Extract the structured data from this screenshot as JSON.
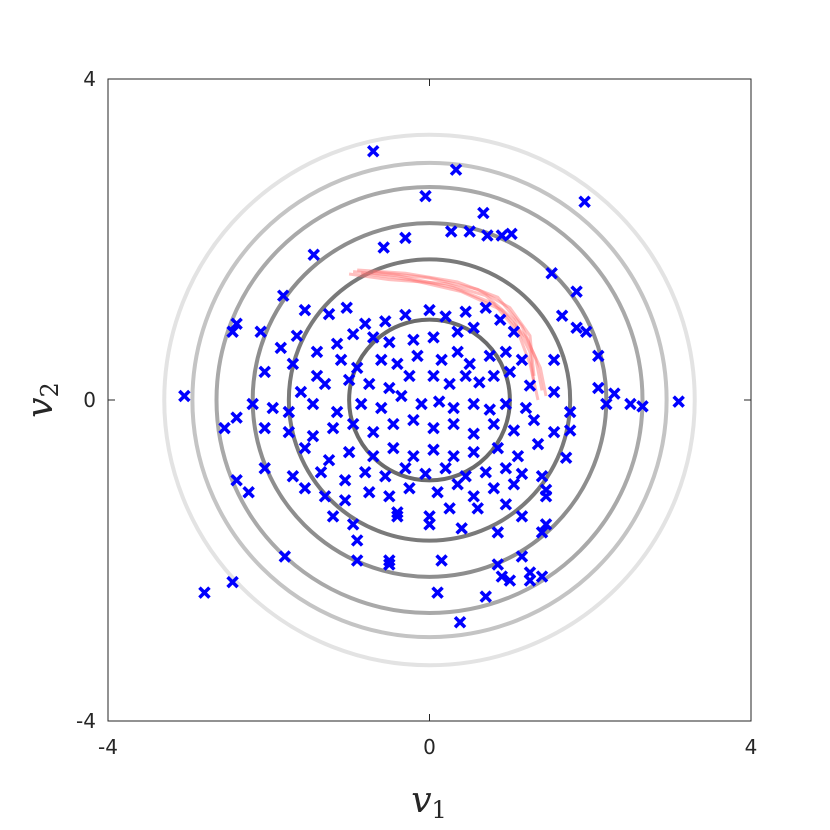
{
  "chart_data": {
    "type": "scatter",
    "title": "",
    "xlabel": {
      "base": "v",
      "sub": "1"
    },
    "ylabel": {
      "base": "v",
      "sub": "2"
    },
    "xlim": [
      -4,
      4
    ],
    "ylim": [
      -4,
      4
    ],
    "xticks": [
      {
        "value": -4,
        "label": "-4"
      },
      {
        "value": 0,
        "label": "0"
      },
      {
        "value": 4,
        "label": "4"
      }
    ],
    "yticks": [
      {
        "value": -4,
        "label": "-4"
      },
      {
        "value": 0,
        "label": "0"
      },
      {
        "value": 4,
        "label": "4"
      }
    ],
    "grid": false,
    "contours": {
      "center": [
        0,
        0
      ],
      "radii": [
        1.0,
        1.75,
        2.2,
        2.65,
        2.95,
        3.3
      ],
      "colors": [
        "#6b6b6b",
        "#7a7a7a",
        "#8e8e8e",
        "#a9a9a9",
        "#c4c4c4",
        "#e3e3e3"
      ]
    },
    "trajectories": {
      "color": "#ff7070",
      "paths": [
        [
          [
            -0.95,
            1.6
          ],
          [
            -0.4,
            1.55
          ],
          [
            0.3,
            1.4
          ],
          [
            0.8,
            1.2
          ],
          [
            1.1,
            0.85
          ],
          [
            1.25,
            0.45
          ],
          [
            1.35,
            0.0
          ]
        ],
        [
          [
            -0.9,
            1.62
          ],
          [
            -0.3,
            1.58
          ],
          [
            0.35,
            1.47
          ],
          [
            0.85,
            1.28
          ],
          [
            1.15,
            0.92
          ],
          [
            1.32,
            0.52
          ],
          [
            1.4,
            0.12
          ]
        ],
        [
          [
            -0.85,
            1.58
          ],
          [
            -0.25,
            1.5
          ],
          [
            0.4,
            1.35
          ],
          [
            0.9,
            1.12
          ],
          [
            1.2,
            0.78
          ],
          [
            1.38,
            0.4
          ],
          [
            1.45,
            0.05
          ]
        ],
        [
          [
            -0.7,
            1.6
          ],
          [
            0.0,
            1.52
          ],
          [
            0.6,
            1.38
          ],
          [
            1.0,
            1.15
          ],
          [
            1.25,
            0.8
          ],
          [
            1.3,
            0.3
          ]
        ],
        [
          [
            -1.0,
            1.57
          ],
          [
            -0.5,
            1.5
          ],
          [
            0.2,
            1.45
          ],
          [
            0.7,
            1.3
          ],
          [
            1.05,
            1.0
          ],
          [
            1.25,
            0.6
          ],
          [
            1.3,
            0.2
          ]
        ]
      ]
    },
    "series": [
      {
        "color": "#0000ff",
        "marker": "x",
        "points": [
          [
            -0.7,
            3.1
          ],
          [
            0.33,
            2.87
          ],
          [
            1.93,
            2.47
          ],
          [
            -0.05,
            2.54
          ],
          [
            0.67,
            2.33
          ],
          [
            -1.44,
            1.81
          ],
          [
            -0.57,
            1.9
          ],
          [
            -0.3,
            2.02
          ],
          [
            0.27,
            2.1
          ],
          [
            0.5,
            2.1
          ],
          [
            0.72,
            2.05
          ],
          [
            0.9,
            2.05
          ],
          [
            1.02,
            2.07
          ],
          [
            1.52,
            1.58
          ],
          [
            1.83,
            1.35
          ],
          [
            -1.82,
            1.3
          ],
          [
            -1.55,
            1.12
          ],
          [
            -1.25,
            1.07
          ],
          [
            -1.03,
            1.15
          ],
          [
            -0.8,
            0.95
          ],
          [
            -0.55,
            0.98
          ],
          [
            -0.3,
            1.06
          ],
          [
            0.0,
            1.12
          ],
          [
            0.2,
            1.04
          ],
          [
            0.45,
            1.1
          ],
          [
            0.7,
            1.15
          ],
          [
            0.88,
            1.0
          ],
          [
            1.05,
            0.85
          ],
          [
            1.65,
            1.05
          ],
          [
            1.83,
            0.9
          ],
          [
            1.95,
            0.85
          ],
          [
            -2.4,
            0.95
          ],
          [
            -2.45,
            0.85
          ],
          [
            -2.1,
            0.85
          ],
          [
            -1.85,
            0.65
          ],
          [
            -1.65,
            0.8
          ],
          [
            -1.4,
            0.6
          ],
          [
            -1.15,
            0.7
          ],
          [
            -0.95,
            0.82
          ],
          [
            -0.7,
            0.78
          ],
          [
            -0.5,
            0.72
          ],
          [
            -0.2,
            0.75
          ],
          [
            0.05,
            0.78
          ],
          [
            0.35,
            0.85
          ],
          [
            0.55,
            0.9
          ],
          [
            -1.7,
            0.45
          ],
          [
            -1.4,
            0.3
          ],
          [
            -1.1,
            0.5
          ],
          [
            -0.9,
            0.4
          ],
          [
            -0.6,
            0.5
          ],
          [
            -0.4,
            0.45
          ],
          [
            -0.15,
            0.55
          ],
          [
            0.15,
            0.5
          ],
          [
            0.35,
            0.6
          ],
          [
            0.5,
            0.45
          ],
          [
            0.75,
            0.55
          ],
          [
            0.95,
            0.6
          ],
          [
            1.15,
            0.5
          ],
          [
            1.55,
            0.5
          ],
          [
            2.1,
            0.55
          ],
          [
            -2.05,
            0.35
          ],
          [
            -1.6,
            0.1
          ],
          [
            -1.3,
            0.2
          ],
          [
            -1.0,
            0.25
          ],
          [
            -0.75,
            0.2
          ],
          [
            -0.5,
            0.15
          ],
          [
            -0.25,
            0.3
          ],
          [
            0.05,
            0.3
          ],
          [
            0.25,
            0.2
          ],
          [
            0.45,
            0.3
          ],
          [
            0.62,
            0.22
          ],
          [
            0.8,
            0.3
          ],
          [
            1.0,
            0.35
          ],
          [
            1.25,
            0.18
          ],
          [
            1.55,
            0.1
          ],
          [
            2.1,
            0.15
          ],
          [
            2.3,
            0.08
          ],
          [
            -3.05,
            0.05
          ],
          [
            -2.2,
            -0.05
          ],
          [
            -1.95,
            -0.1
          ],
          [
            -1.75,
            -0.15
          ],
          [
            -1.45,
            -0.05
          ],
          [
            -1.15,
            -0.15
          ],
          [
            -0.85,
            -0.05
          ],
          [
            -0.6,
            -0.1
          ],
          [
            -0.35,
            0.05
          ],
          [
            -0.1,
            -0.05
          ],
          [
            0.12,
            -0.02
          ],
          [
            0.3,
            -0.1
          ],
          [
            0.55,
            -0.05
          ],
          [
            0.75,
            -0.12
          ],
          [
            0.95,
            -0.05
          ],
          [
            1.2,
            -0.1
          ],
          [
            1.75,
            -0.15
          ],
          [
            2.2,
            -0.05
          ],
          [
            2.5,
            -0.05
          ],
          [
            2.65,
            -0.08
          ],
          [
            3.1,
            -0.02
          ],
          [
            -2.55,
            -0.35
          ],
          [
            -2.4,
            -0.22
          ],
          [
            -2.05,
            -0.35
          ],
          [
            -1.75,
            -0.4
          ],
          [
            -1.45,
            -0.45
          ],
          [
            -1.2,
            -0.35
          ],
          [
            -0.95,
            -0.3
          ],
          [
            -0.7,
            -0.4
          ],
          [
            -0.45,
            -0.3
          ],
          [
            -0.2,
            -0.25
          ],
          [
            0.05,
            -0.35
          ],
          [
            0.3,
            -0.3
          ],
          [
            0.55,
            -0.42
          ],
          [
            0.8,
            -0.3
          ],
          [
            1.05,
            -0.38
          ],
          [
            1.3,
            -0.25
          ],
          [
            1.55,
            -0.4
          ],
          [
            1.75,
            -0.38
          ],
          [
            -1.55,
            -0.6
          ],
          [
            -1.25,
            -0.75
          ],
          [
            -1.0,
            -0.65
          ],
          [
            -0.7,
            -0.7
          ],
          [
            -0.45,
            -0.6
          ],
          [
            -0.2,
            -0.7
          ],
          [
            0.05,
            -0.62
          ],
          [
            0.3,
            -0.7
          ],
          [
            0.55,
            -0.65
          ],
          [
            0.85,
            -0.6
          ],
          [
            1.1,
            -0.7
          ],
          [
            1.35,
            -0.55
          ],
          [
            1.7,
            -0.72
          ],
          [
            -2.05,
            -0.85
          ],
          [
            -1.7,
            -0.95
          ],
          [
            -1.35,
            -0.9
          ],
          [
            -1.05,
            -1.0
          ],
          [
            -0.8,
            -0.9
          ],
          [
            -0.55,
            -0.95
          ],
          [
            -0.3,
            -0.85
          ],
          [
            -0.05,
            -0.92
          ],
          [
            0.2,
            -0.85
          ],
          [
            0.45,
            -0.95
          ],
          [
            0.7,
            -0.9
          ],
          [
            0.95,
            -0.85
          ],
          [
            1.15,
            -0.92
          ],
          [
            1.4,
            -0.95
          ],
          [
            -2.4,
            -1.0
          ],
          [
            -2.25,
            -1.15
          ],
          [
            -1.55,
            -1.1
          ],
          [
            -1.3,
            -1.2
          ],
          [
            -1.05,
            -1.25
          ],
          [
            -0.75,
            -1.15
          ],
          [
            -0.5,
            -1.2
          ],
          [
            -0.25,
            -1.1
          ],
          [
            0.1,
            -1.15
          ],
          [
            0.35,
            -1.05
          ],
          [
            0.55,
            -1.2
          ],
          [
            0.8,
            -1.1
          ],
          [
            1.05,
            -1.05
          ],
          [
            1.45,
            -1.12
          ],
          [
            1.45,
            -1.2
          ],
          [
            -1.2,
            -1.45
          ],
          [
            -0.95,
            -1.55
          ],
          [
            -0.4,
            -1.45
          ],
          [
            0.0,
            -1.45
          ],
          [
            0.25,
            -1.35
          ],
          [
            0.6,
            -1.35
          ],
          [
            0.95,
            -1.3
          ],
          [
            1.15,
            -1.45
          ],
          [
            1.45,
            -1.55
          ],
          [
            -0.9,
            -1.75
          ],
          [
            -0.4,
            -1.4
          ],
          [
            0.0,
            -1.55
          ],
          [
            0.4,
            -1.6
          ],
          [
            0.85,
            -1.65
          ],
          [
            1.4,
            -1.65
          ],
          [
            -1.8,
            -1.95
          ],
          [
            -0.9,
            -2.0
          ],
          [
            -0.5,
            -2.05
          ],
          [
            0.15,
            -2.0
          ],
          [
            0.85,
            -2.05
          ],
          [
            1.15,
            -1.95
          ],
          [
            1.25,
            -2.15
          ],
          [
            0.9,
            -2.2
          ],
          [
            1.0,
            -2.25
          ],
          [
            1.4,
            -2.2
          ],
          [
            1.25,
            -2.25
          ],
          [
            -2.8,
            -2.4
          ],
          [
            -2.45,
            -2.27
          ],
          [
            0.1,
            -2.4
          ],
          [
            0.7,
            -2.45
          ],
          [
            0.38,
            -2.77
          ],
          [
            -0.5,
            -2.0
          ]
        ]
      }
    ]
  }
}
